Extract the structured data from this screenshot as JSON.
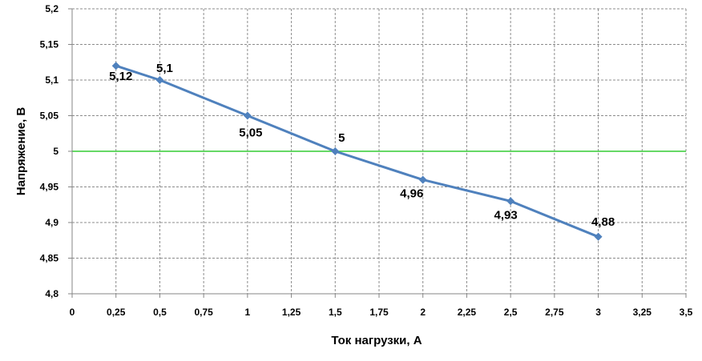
{
  "chart_data": {
    "type": "line",
    "xlabel": "Ток нагрузки, А",
    "ylabel": "Напряжение, В",
    "xlim": [
      0,
      3.5
    ],
    "ylim": [
      4.8,
      5.2
    ],
    "x_ticks": [
      0,
      0.25,
      0.5,
      0.75,
      1,
      1.25,
      1.5,
      1.75,
      2,
      2.25,
      2.5,
      2.75,
      3,
      3.25,
      3.5
    ],
    "x_tick_labels": [
      "0",
      "0,25",
      "0,5",
      "0,75",
      "1",
      "1,25",
      "1,5",
      "1,75",
      "2",
      "2,25",
      "2,5",
      "2,75",
      "3",
      "3,25",
      "3,5"
    ],
    "y_ticks": [
      4.8,
      4.85,
      4.9,
      4.95,
      5,
      5.05,
      5.1,
      5.15,
      5.2
    ],
    "y_tick_labels": [
      "4,8",
      "4,85",
      "4,9",
      "4,95",
      "5",
      "5,05",
      "5,1",
      "5,15",
      "5,2"
    ],
    "grid": true,
    "legend": "none",
    "reference_line": {
      "y": 5,
      "color": "#33cc33"
    },
    "series": [
      {
        "color": "#4f81bd",
        "marker": "diamond",
        "x": [
          0.25,
          0.5,
          1,
          1.5,
          2,
          2.5,
          3
        ],
        "y": [
          5.12,
          5.1,
          5.05,
          5,
          4.96,
          4.93,
          4.88
        ],
        "data_labels": [
          "5,12",
          "5,1",
          "5,05",
          "5",
          "4,96",
          "4,93",
          "4,88"
        ]
      }
    ]
  }
}
